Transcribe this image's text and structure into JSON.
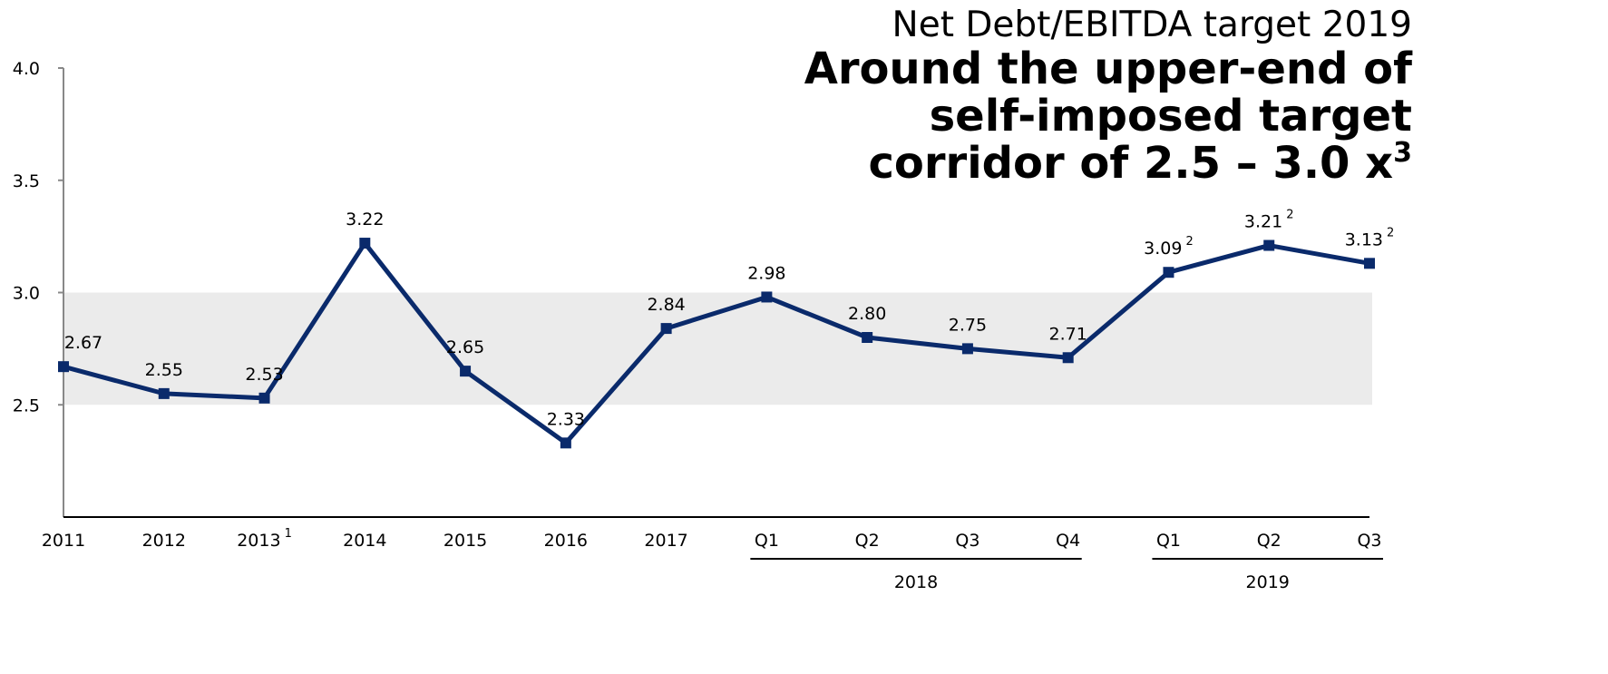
{
  "chart_data": {
    "type": "line",
    "title": "Net Debt/EBITDA target 2019",
    "subtitle_lines": [
      "Around the upper-end of",
      "self-imposed target",
      "corridor of 2.5 – 3.0 x"
    ],
    "subtitle_footnote": "3",
    "categories": [
      "2011",
      "2012",
      "2013",
      "2014",
      "2015",
      "2016",
      "2017",
      "Q1",
      "Q2",
      "Q3",
      "Q4",
      "Q1",
      "Q2",
      "Q3"
    ],
    "category_footnotes": [
      null,
      null,
      "1",
      null,
      null,
      null,
      null,
      null,
      null,
      null,
      null,
      null,
      null,
      null
    ],
    "groups": [
      {
        "label": "2018",
        "first": 7,
        "last": 10
      },
      {
        "label": "2019",
        "first": 11,
        "last": 13
      }
    ],
    "series": [
      {
        "name": "Net Debt/EBITDA",
        "color": "#0a2a6b",
        "values": [
          2.67,
          2.55,
          2.53,
          3.22,
          2.65,
          2.33,
          2.84,
          2.98,
          2.8,
          2.75,
          2.71,
          3.09,
          3.21,
          3.13
        ],
        "value_labels": [
          "2.67",
          "2.55",
          "2.53",
          "3.22",
          "2.65",
          "2.33",
          "2.84",
          "2.98",
          "2.80",
          "2.75",
          "2.71",
          "3.09",
          "3.21",
          "3.13"
        ],
        "value_footnotes": [
          null,
          null,
          null,
          null,
          null,
          null,
          null,
          null,
          null,
          null,
          null,
          "2",
          "2",
          "2"
        ]
      }
    ],
    "band": [
      2.5,
      3.0
    ],
    "band_color": "#ebebeb",
    "ylim": [
      2,
      4
    ],
    "yticks": [
      {
        "value": 2.5,
        "label": "2.5"
      },
      {
        "value": 3,
        "label": "3.0"
      },
      {
        "value": 3.5,
        "label": "3.5"
      },
      {
        "value": 4,
        "label": "4.0"
      }
    ]
  }
}
